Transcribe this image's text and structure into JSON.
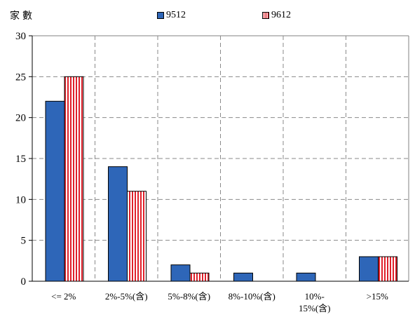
{
  "chart_data": {
    "type": "bar",
    "title": "",
    "ylabel": "家數",
    "xlabel": "",
    "categories": [
      [
        "<= 2%"
      ],
      [
        "2%-5%(含)"
      ],
      [
        "5%-8%(含)"
      ],
      [
        "8%-10%(含)"
      ],
      [
        "10%-",
        "15%(含)"
      ],
      [
        ">15%"
      ]
    ],
    "series": [
      {
        "name": "9512",
        "values": [
          22,
          14,
          2,
          1,
          1,
          3
        ],
        "color": "#2e66b8",
        "pattern": "solid"
      },
      {
        "name": "9612",
        "values": [
          25,
          11,
          1,
          0,
          0,
          3
        ],
        "color": "#e0202a",
        "pattern": "vertical-stripes"
      }
    ],
    "ylim": [
      0,
      30
    ],
    "yticks": [
      0,
      5,
      10,
      15,
      20,
      25,
      30
    ],
    "grid": true,
    "grid_style": "dashed",
    "legend_position": "top"
  }
}
